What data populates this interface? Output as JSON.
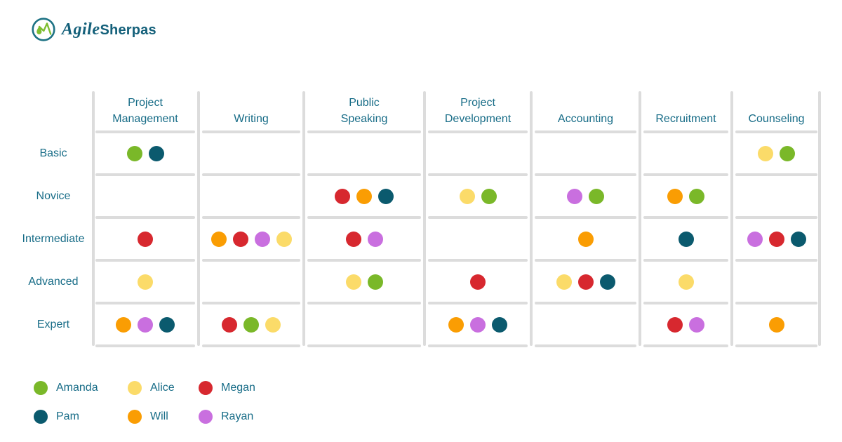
{
  "logo": {
    "brand_agile": "Agile",
    "brand_sherpas": "Sherpas"
  },
  "colors": {
    "label_text": "#176C87",
    "grid_line": "#DCDCDC",
    "logo_teal": "#1D7284",
    "logo_green": "#7EBE32"
  },
  "people": {
    "amanda": {
      "name": "Amanda",
      "color": "#7AB829"
    },
    "pam": {
      "name": "Pam",
      "color": "#0B5A6E"
    },
    "alice": {
      "name": "Alice",
      "color": "#FBDB69"
    },
    "will": {
      "name": "Will",
      "color": "#FA9D03"
    },
    "megan": {
      "name": "Megan",
      "color": "#D7282F"
    },
    "rayan": {
      "name": "Rayan",
      "color": "#C96FDF"
    }
  },
  "legend": {
    "columns": [
      [
        "amanda",
        "pam"
      ],
      [
        "alice",
        "will"
      ],
      [
        "megan",
        "rayan"
      ]
    ]
  },
  "chart_data": {
    "type": "table",
    "columns": [
      "Project\nManagement",
      "Writing",
      "Public\nSpeaking",
      "Project\nDevelopment",
      "Accounting",
      "Recruitment",
      "Counseling"
    ],
    "rows": [
      "Basic",
      "Novice",
      "Intermediate",
      "Advanced",
      "Expert"
    ],
    "legend_position": "bottom-left",
    "grid": true,
    "matrix": [
      [
        [
          "amanda",
          "pam"
        ],
        [],
        [],
        [],
        [],
        [],
        [
          "alice",
          "amanda"
        ]
      ],
      [
        [],
        [],
        [
          "megan",
          "will",
          "pam"
        ],
        [
          "alice",
          "amanda"
        ],
        [
          "rayan",
          "amanda"
        ],
        [
          "will",
          "amanda"
        ],
        []
      ],
      [
        [
          "megan"
        ],
        [
          "will",
          "megan",
          "rayan",
          "alice"
        ],
        [
          "megan",
          "rayan"
        ],
        [],
        [
          "will"
        ],
        [
          "pam"
        ],
        [
          "rayan",
          "megan",
          "pam"
        ]
      ],
      [
        [
          "alice"
        ],
        [],
        [
          "alice",
          "amanda"
        ],
        [
          "megan"
        ],
        [
          "alice",
          "megan",
          "pam"
        ],
        [
          "alice"
        ],
        []
      ],
      [
        [
          "will",
          "rayan",
          "pam"
        ],
        [
          "megan",
          "amanda",
          "alice"
        ],
        [],
        [
          "will",
          "rayan",
          "pam"
        ],
        [],
        [
          "megan",
          "rayan"
        ],
        [
          "will"
        ]
      ]
    ]
  }
}
